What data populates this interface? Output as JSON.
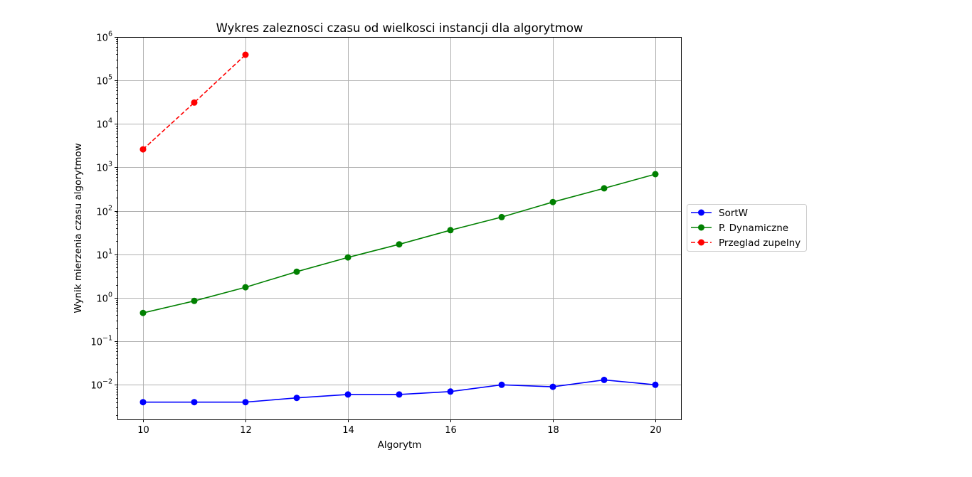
{
  "chart_data": {
    "type": "line",
    "title": "Wykres zaleznosci czasu od wielkosci instancji dla algorytmow",
    "xlabel": "Algorytm",
    "ylabel": "Wynik mierzenia czasu algorytmow",
    "x_ticks": [
      10,
      12,
      14,
      16,
      18,
      20
    ],
    "x_tick_labels": [
      "10",
      "12",
      "14",
      "16",
      "18",
      "20"
    ],
    "xlim": [
      9.5,
      20.5
    ],
    "yscale": "log",
    "y_ticks": [
      0.01,
      0.1,
      1,
      10,
      100,
      1000,
      10000,
      100000,
      1000000
    ],
    "y_tick_labels": [
      {
        "base": "10",
        "exp": "−2"
      },
      {
        "base": "10",
        "exp": "−1"
      },
      {
        "base": "10",
        "exp": "0"
      },
      {
        "base": "10",
        "exp": "1"
      },
      {
        "base": "10",
        "exp": "2"
      },
      {
        "base": "10",
        "exp": "3"
      },
      {
        "base": "10",
        "exp": "4"
      },
      {
        "base": "10",
        "exp": "5"
      },
      {
        "base": "10",
        "exp": "6"
      }
    ],
    "ylim": [
      0.0016,
      1000000
    ],
    "grid": true,
    "legend_position": "outside-right",
    "series": [
      {
        "name": "SortW",
        "color": "#0000ff",
        "line_style": "solid",
        "marker": "circle",
        "x": [
          10,
          11,
          12,
          13,
          14,
          15,
          16,
          17,
          18,
          19,
          20
        ],
        "y": [
          0.004,
          0.004,
          0.004,
          0.005,
          0.006,
          0.006,
          0.007,
          0.01,
          0.009,
          0.013,
          0.01
        ]
      },
      {
        "name": "P. Dynamiczne",
        "color": "#008000",
        "line_style": "solid",
        "marker": "circle",
        "x": [
          10,
          11,
          12,
          13,
          14,
          15,
          16,
          17,
          18,
          19,
          20
        ],
        "y": [
          0.45,
          0.85,
          1.75,
          4.0,
          8.5,
          17,
          36,
          72,
          160,
          330,
          700
        ]
      },
      {
        "name": "Przeglad zupelny",
        "color": "#ff0000",
        "line_style": "dashed",
        "marker": "circle",
        "x": [
          10,
          11,
          12
        ],
        "y": [
          2600,
          31000,
          390000
        ]
      }
    ]
  }
}
